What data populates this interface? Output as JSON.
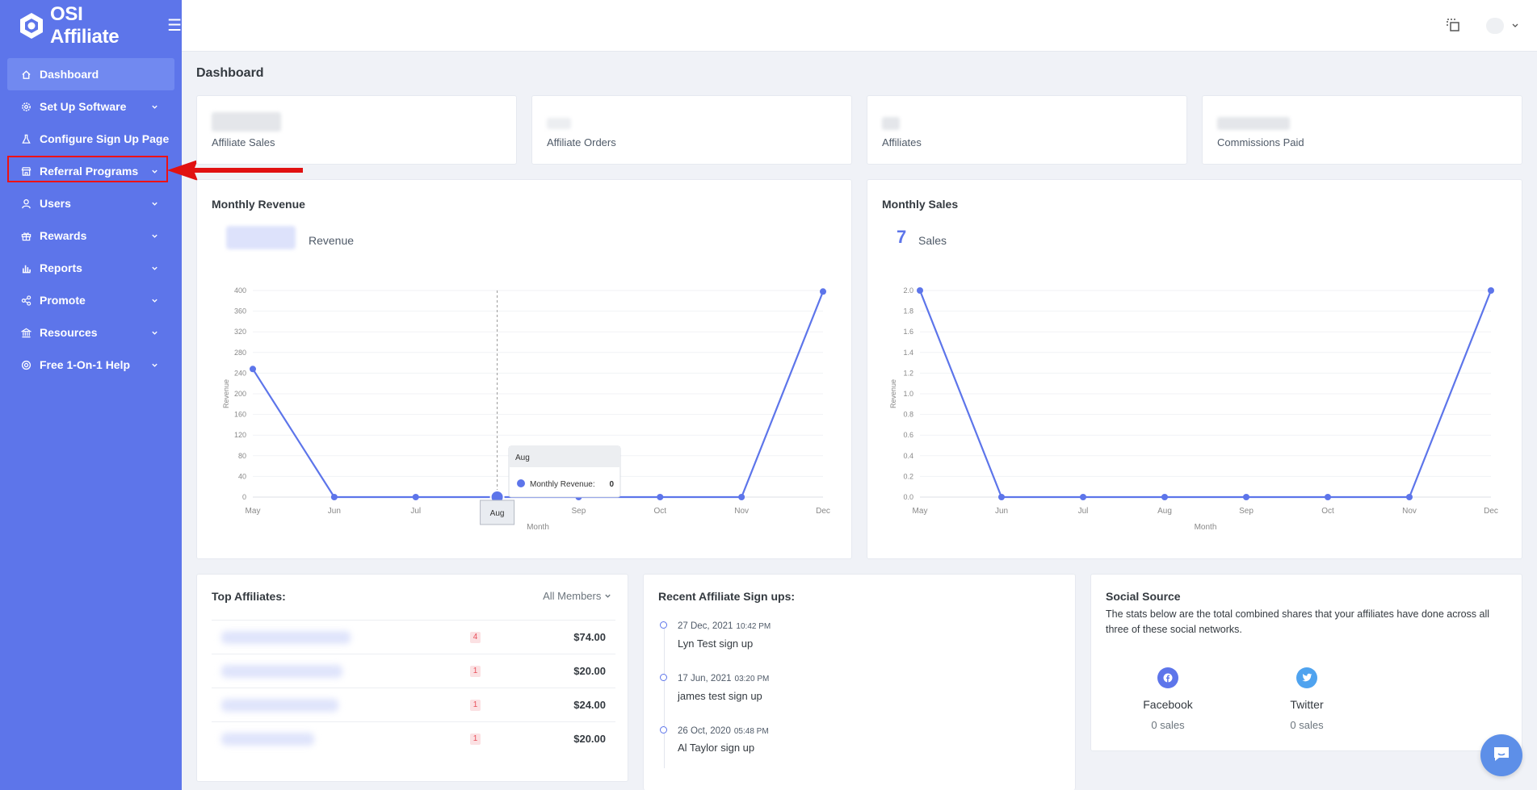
{
  "brand": {
    "name": "OSI Affiliate"
  },
  "sidebar": {
    "items": [
      {
        "label": "Dashboard",
        "icon": "home-icon"
      },
      {
        "label": "Set Up Software",
        "icon": "cog-icon"
      },
      {
        "label": "Configure Sign Up Page",
        "icon": "flask-icon"
      },
      {
        "label": "Referral Programs",
        "icon": "store-icon"
      },
      {
        "label": "Users",
        "icon": "user-icon"
      },
      {
        "label": "Rewards",
        "icon": "gift-icon"
      },
      {
        "label": "Reports",
        "icon": "bar-chart-icon"
      },
      {
        "label": "Promote",
        "icon": "share-icon"
      },
      {
        "label": "Resources",
        "icon": "bank-icon"
      },
      {
        "label": "Free 1-On-1 Help",
        "icon": "lifebuoy-icon"
      }
    ]
  },
  "page": {
    "title": "Dashboard"
  },
  "stats": [
    {
      "label": "Affiliate Sales"
    },
    {
      "label": "Affiliate Orders"
    },
    {
      "label": "Affiliates"
    },
    {
      "label": "Commissions Paid"
    }
  ],
  "revenue_card": {
    "title": "Monthly Revenue",
    "metric_label": "Revenue"
  },
  "sales_card": {
    "title": "Monthly Sales",
    "metric_value": "7",
    "metric_label": "Sales"
  },
  "tooltip": {
    "title": "Aug",
    "series": "Monthly Revenue:",
    "value": "0",
    "crosshair_label": "Aug"
  },
  "top_affiliates": {
    "title": "Top Affiliates:",
    "filter": "All Members",
    "rows": [
      {
        "count": "4",
        "amount": "$74.00"
      },
      {
        "count": "1",
        "amount": "$20.00"
      },
      {
        "count": "1",
        "amount": "$24.00"
      },
      {
        "count": "1",
        "amount": "$20.00"
      }
    ]
  },
  "signups": {
    "title": "Recent Affiliate Sign ups:",
    "items": [
      {
        "date": "27 Dec, 2021",
        "time": "10:42 PM",
        "text": "Lyn Test sign up"
      },
      {
        "date": "17 Jun, 2021",
        "time": "03:20 PM",
        "text": "james test sign up"
      },
      {
        "date": "26 Oct, 2020",
        "time": "05:48 PM",
        "text": "Al Taylor sign up"
      }
    ]
  },
  "social": {
    "title": "Social Source",
    "description": "The stats below are the total combined shares that your affiliates have done across all three of these social networks.",
    "networks": [
      {
        "name": "Facebook",
        "count": "0 sales",
        "color": "#5d75ea"
      },
      {
        "name": "Twitter",
        "count": "0 sales",
        "color": "#4fa3ef"
      }
    ]
  },
  "colors": {
    "accent": "#5d75ea",
    "sidebar": "#5d75ea",
    "highlight": "#e11111"
  },
  "chart_data": [
    {
      "type": "line",
      "categories": [
        "May",
        "Jun",
        "Jul",
        "Aug",
        "Sep",
        "Oct",
        "Nov",
        "Dec"
      ],
      "series": [
        {
          "name": "Monthly Revenue",
          "values": [
            248,
            0,
            0,
            0,
            0,
            0,
            0,
            398
          ]
        }
      ],
      "xlabel": "Month",
      "ylabel": "Revenue",
      "ylim": [
        0,
        400
      ],
      "yticks": [
        "0",
        "40",
        "80",
        "120",
        "160",
        "200",
        "240",
        "280",
        "320",
        "360",
        "400"
      ]
    },
    {
      "type": "line",
      "categories": [
        "May",
        "Jun",
        "Jul",
        "Aug",
        "Sep",
        "Oct",
        "Nov",
        "Dec"
      ],
      "series": [
        {
          "values": [
            2.0,
            0,
            0,
            0,
            0,
            0,
            0,
            2.0
          ]
        }
      ],
      "xlabel": "Month",
      "ylabel": "Revenue",
      "ylim": [
        0,
        2.0
      ],
      "yticks": [
        "0.0",
        "0.2",
        "0.4",
        "0.6",
        "0.8",
        "1.0",
        "1.2",
        "1.4",
        "1.6",
        "1.8",
        "2.0"
      ]
    }
  ]
}
